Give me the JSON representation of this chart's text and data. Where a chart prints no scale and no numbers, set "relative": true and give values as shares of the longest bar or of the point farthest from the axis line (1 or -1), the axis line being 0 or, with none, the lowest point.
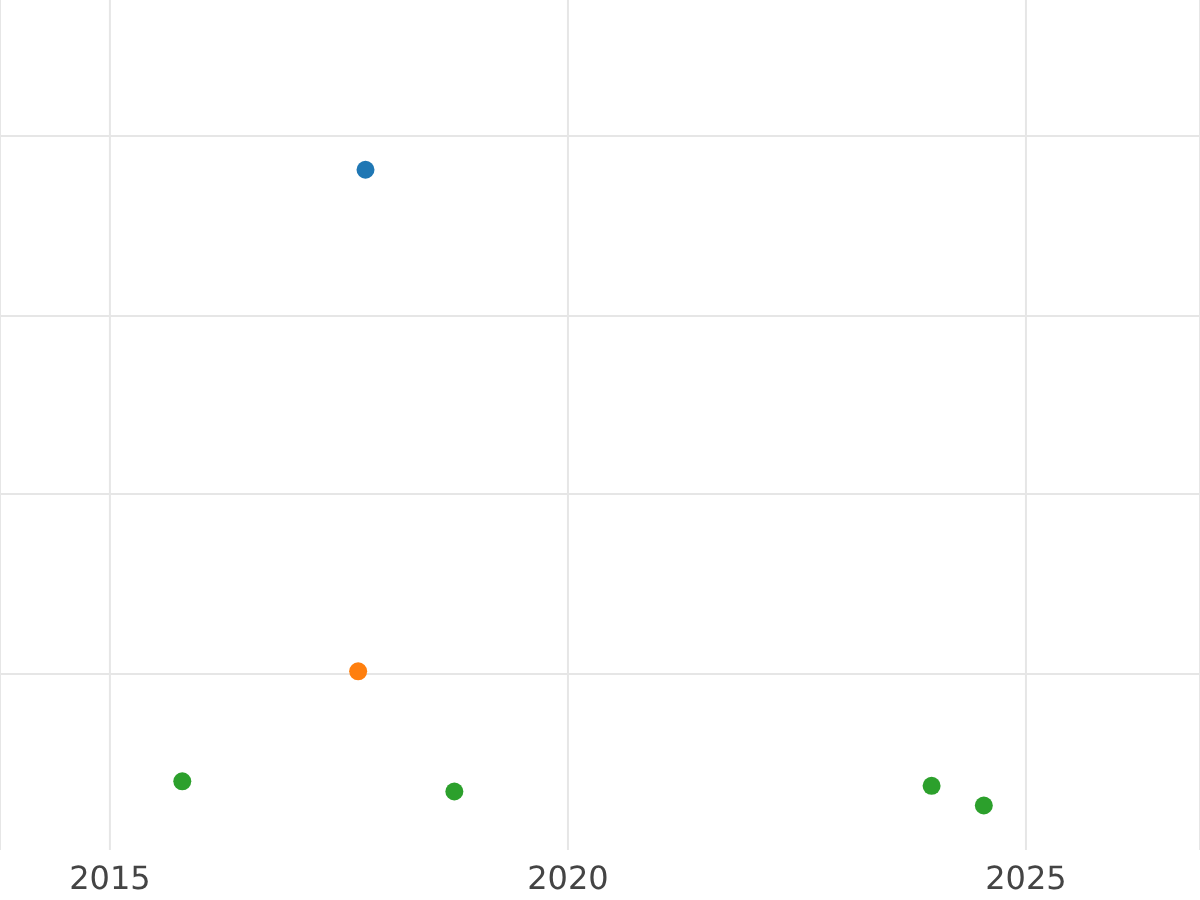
{
  "chart_data": {
    "type": "scatter",
    "relative": true,
    "xlim": [
      2013.8,
      2026.9
    ],
    "xticks": [
      2015,
      2020,
      2025
    ],
    "grid": true,
    "marker": "circle",
    "legend": false,
    "tick_labels": "x",
    "series": [
      {
        "color": "#1f77b4",
        "x": [
          2017.79
        ],
        "values": [
          1
        ]
      },
      {
        "color": "#ff7f0e",
        "x": [
          2017.71
        ],
        "values": [
          0.211
        ]
      },
      {
        "color": "#2ca02c",
        "x": [
          2015.79,
          2018.76,
          2023.97,
          2024.54
        ],
        "values": [
          0.038,
          0.022,
          0.031,
          0
        ]
      }
    ]
  }
}
